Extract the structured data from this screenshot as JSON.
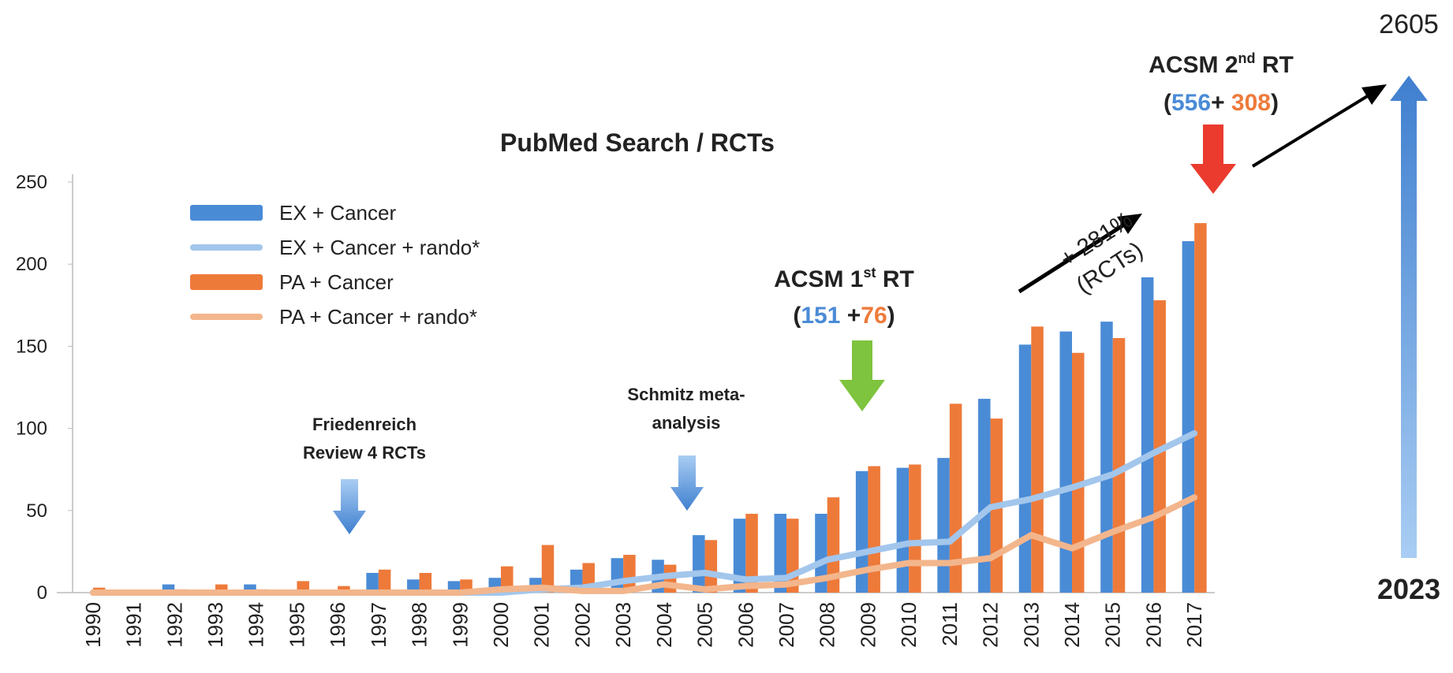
{
  "chart_data": {
    "type": "bar_line",
    "title": "PubMed Search / RCTs",
    "categories": [
      "1990",
      "1991",
      "1992",
      "1993",
      "1994",
      "1995",
      "1996",
      "1997",
      "1998",
      "1999",
      "2000",
      "2001",
      "2002",
      "2003",
      "2004",
      "2005",
      "2006",
      "2007",
      "2008",
      "2009",
      "2010",
      "2011",
      "2012",
      "2013",
      "2014",
      "2015",
      "2016",
      "2017"
    ],
    "series": [
      {
        "name": "EX + Cancer",
        "kind": "bar",
        "color": "#4a8bd6",
        "values": [
          0,
          1,
          5,
          0,
          5,
          1,
          1,
          12,
          8,
          7,
          9,
          9,
          14,
          21,
          20,
          35,
          45,
          48,
          48,
          74,
          76,
          82,
          118,
          151,
          159,
          165,
          192,
          214
        ]
      },
      {
        "name": "EX + Cancer + rando*",
        "kind": "line",
        "color": "#a3c6ec",
        "values": [
          0,
          0,
          0,
          0,
          0,
          0,
          0,
          0,
          0,
          0,
          0,
          2,
          3,
          7,
          10,
          12,
          8,
          9,
          20,
          25,
          30,
          31,
          52,
          57,
          64,
          72,
          85,
          97
        ]
      },
      {
        "name": "PA + Cancer",
        "kind": "bar",
        "color": "#ee7a3a",
        "values": [
          3,
          1,
          2,
          5,
          2,
          7,
          4,
          14,
          12,
          8,
          16,
          29,
          18,
          23,
          17,
          32,
          48,
          45,
          58,
          77,
          78,
          115,
          106,
          162,
          146,
          155,
          178,
          225
        ]
      },
      {
        "name": "PA + Cancer + rando*",
        "kind": "line",
        "color": "#f3b68c",
        "values": [
          0,
          0,
          0,
          0,
          0,
          0,
          0,
          0,
          0,
          0,
          2,
          3,
          1,
          1,
          5,
          2,
          4,
          5,
          9,
          14,
          18,
          18,
          21,
          35,
          27,
          37,
          46,
          58
        ]
      }
    ],
    "ylim": [
      0,
      250
    ],
    "yticks": [
      0,
      50,
      100,
      150,
      200,
      250
    ],
    "annotations": {
      "friedenreich": [
        "Friedenreich",
        "Review 4 RCTs"
      ],
      "schmitz": [
        "Schmitz meta-",
        "analysis"
      ],
      "acsm1": {
        "a": "ACSM 1",
        "sup": "st",
        "b": " RT",
        "open": "(",
        "ex": "151",
        "mid": " +",
        "pa": "76",
        "close": ")"
      },
      "growth": "+ 281%",
      "growth_note": "(RCTs)",
      "acsm2": {
        "a": "ACSM 2",
        "sup": "nd",
        "b": " RT",
        "open": "(",
        "ex": "556",
        "mid": "+ ",
        "pa": "308",
        "close": ")"
      },
      "projection_top": "2605",
      "projection_year": "2023"
    }
  }
}
